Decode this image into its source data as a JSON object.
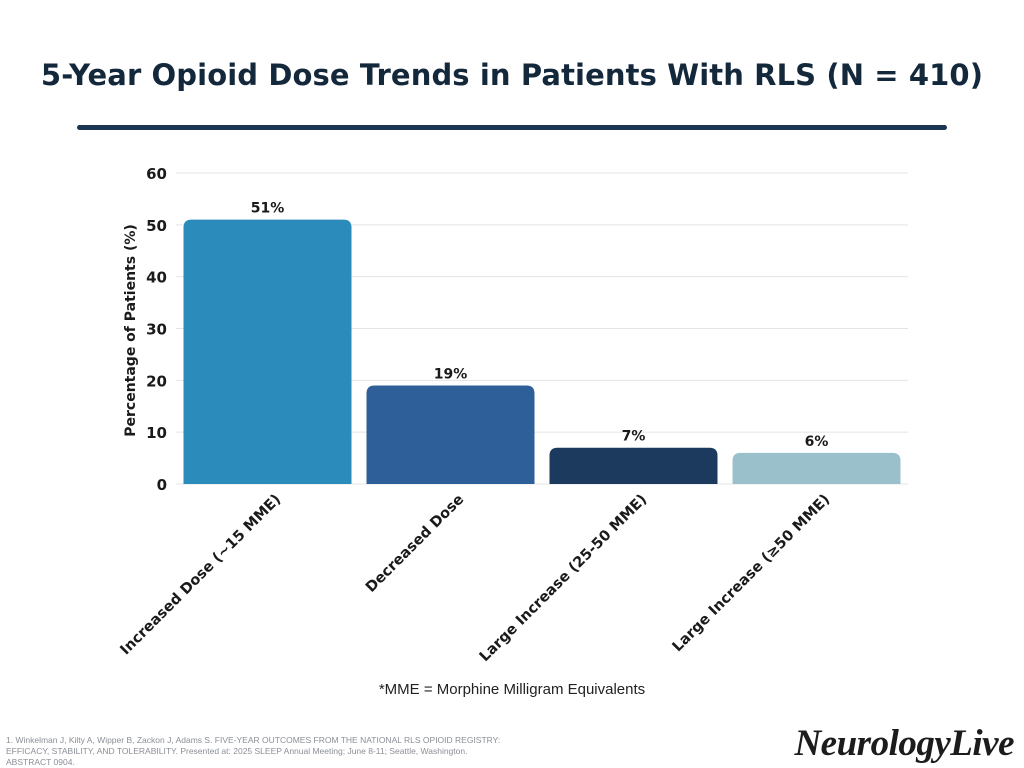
{
  "title": "5-Year Opioid Dose Trends in Patients With RLS (N = 410)",
  "colors": {
    "title_text": "#14283c",
    "title_rule": "#1c3550",
    "grid": "#e4e4e4",
    "axis_text": "#1a1a1a"
  },
  "chart_data": {
    "type": "bar",
    "categories": [
      "Increased Dose (~15 MME)",
      "Decreased Dose",
      "Large Increase (25-50 MME)",
      "Large Increase (≥50 MME)"
    ],
    "values": [
      51,
      19,
      7,
      6
    ],
    "data_labels": [
      "51%",
      "19%",
      "7%",
      "6%"
    ],
    "bar_colors": [
      "#2b8bbb",
      "#2f5f98",
      "#1c3a5e",
      "#99c0cb"
    ],
    "ylabel": "Percentage of Patients (%)",
    "xlabel": "",
    "ylim": [
      0,
      60
    ],
    "yticks": [
      0,
      10,
      20,
      30,
      40,
      50,
      60
    ],
    "grid": true,
    "legend": "none"
  },
  "footnote": "*MME = Morphine Milligram Equivalents",
  "reference": "1. Winkelman J, Kilty A, Wipper B, Zackon J, Adams S. FIVE-YEAR OUTCOMES FROM THE NATIONAL RLS OPIOID REGISTRY: EFFICACY, STABILITY, AND TOLERABILITY. Presented at: 2025 SLEEP Annual Meeting; June 8-11; Seattle, Washington. ABSTRACT 0904.",
  "brand": "NeurologyLive"
}
